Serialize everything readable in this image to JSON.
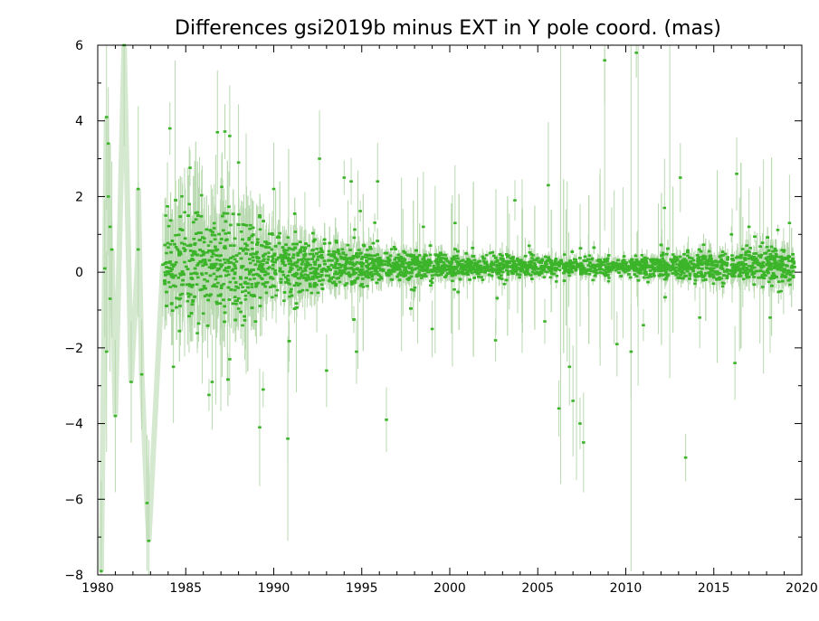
{
  "chart_data": {
    "type": "scatter",
    "title": "Differences gsi2019b minus EXT in Y pole coord. (mas)",
    "xlabel": "",
    "ylabel": "",
    "xlim": [
      1980,
      2020
    ],
    "ylim": [
      -8,
      6
    ],
    "x_ticks": [
      "1980",
      "1985",
      "1990",
      "1995",
      "2000",
      "2005",
      "2010",
      "2015",
      "2020"
    ],
    "y_ticks": [
      "6",
      "4",
      "2",
      "0",
      "−2",
      "−4",
      "−6",
      "−8"
    ],
    "grid": false,
    "legend": "none",
    "point_color": "#3cb42a",
    "errorbar_color": "#b9d9b1",
    "early_points": [
      {
        "x": 1980.2,
        "y": -7.9
      },
      {
        "x": 1980.4,
        "y": 0.1
      },
      {
        "x": 1980.5,
        "y": 4.1
      },
      {
        "x": 1980.6,
        "y": 3.4
      },
      {
        "x": 1980.6,
        "y": 2.0
      },
      {
        "x": 1980.7,
        "y": 1.2
      },
      {
        "x": 1980.8,
        "y": 0.6
      },
      {
        "x": 1980.7,
        "y": -0.7
      },
      {
        "x": 1980.5,
        "y": -2.1
      },
      {
        "x": 1981.0,
        "y": -3.8
      },
      {
        "x": 1981.5,
        "y": 6.0
      },
      {
        "x": 1981.9,
        "y": -2.9
      },
      {
        "x": 1982.3,
        "y": 0.6
      },
      {
        "x": 1982.3,
        "y": 2.2
      },
      {
        "x": 1982.5,
        "y": -2.7
      },
      {
        "x": 1982.8,
        "y": -6.1
      },
      {
        "x": 1982.9,
        "y": -7.1
      },
      {
        "x": 1983.7,
        "y": 0.2
      }
    ],
    "scattered_points": [
      {
        "x": 1984.1,
        "y": 3.8
      },
      {
        "x": 1986.8,
        "y": 3.7
      },
      {
        "x": 1987.5,
        "y": 3.6
      },
      {
        "x": 1988.0,
        "y": 2.9
      },
      {
        "x": 1992.6,
        "y": 3.0
      },
      {
        "x": 1994.0,
        "y": 2.5
      },
      {
        "x": 1994.4,
        "y": 2.4
      },
      {
        "x": 1995.9,
        "y": 2.4
      },
      {
        "x": 2003.7,
        "y": 1.9
      },
      {
        "x": 2005.6,
        "y": 2.3
      },
      {
        "x": 2008.8,
        "y": 5.6
      },
      {
        "x": 2010.6,
        "y": 5.8
      },
      {
        "x": 2013.1,
        "y": 2.5
      },
      {
        "x": 2016.3,
        "y": 2.6
      },
      {
        "x": 2012.2,
        "y": 1.7
      },
      {
        "x": 1985.2,
        "y": 1.8
      },
      {
        "x": 1990.0,
        "y": 2.2
      },
      {
        "x": 1998.5,
        "y": 1.2
      },
      {
        "x": 2000.3,
        "y": 1.3
      },
      {
        "x": 2017.0,
        "y": 1.2
      },
      {
        "x": 2019.3,
        "y": 1.3
      },
      {
        "x": 1984.3,
        "y": -2.5
      },
      {
        "x": 1986.5,
        "y": -2.9
      },
      {
        "x": 1987.5,
        "y": -2.3
      },
      {
        "x": 1989.4,
        "y": -3.1
      },
      {
        "x": 1989.2,
        "y": -4.1
      },
      {
        "x": 1990.8,
        "y": -4.4
      },
      {
        "x": 1993.0,
        "y": -2.6
      },
      {
        "x": 1994.7,
        "y": -2.1
      },
      {
        "x": 1996.4,
        "y": -3.9
      },
      {
        "x": 2006.2,
        "y": -3.6
      },
      {
        "x": 2006.8,
        "y": -2.5
      },
      {
        "x": 2007.0,
        "y": -3.4
      },
      {
        "x": 2007.4,
        "y": -4.0
      },
      {
        "x": 2007.6,
        "y": -4.5
      },
      {
        "x": 2010.3,
        "y": -2.1
      },
      {
        "x": 2013.4,
        "y": -4.9
      },
      {
        "x": 2002.6,
        "y": -1.8
      },
      {
        "x": 2005.4,
        "y": -1.3
      },
      {
        "x": 2009.5,
        "y": -1.9
      },
      {
        "x": 2016.2,
        "y": -2.4
      },
      {
        "x": 2011.0,
        "y": -1.4
      },
      {
        "x": 2018.2,
        "y": -1.2
      },
      {
        "x": 1999.0,
        "y": -1.5
      },
      {
        "x": 2014.2,
        "y": -1.2
      }
    ],
    "bulk_series": {
      "x_range": [
        1983.8,
        2019.6
      ],
      "center_y": 0.15,
      "spread_by_year": [
        {
          "x": 1984,
          "sd": 0.8
        },
        {
          "x": 1988,
          "sd": 0.7
        },
        {
          "x": 1990,
          "sd": 0.45
        },
        {
          "x": 1993,
          "sd": 0.3
        },
        {
          "x": 1997,
          "sd": 0.18
        },
        {
          "x": 2005,
          "sd": 0.12
        },
        {
          "x": 2010,
          "sd": 0.12
        },
        {
          "x": 2015,
          "sd": 0.2
        },
        {
          "x": 2019.6,
          "sd": 0.25
        }
      ]
    }
  }
}
